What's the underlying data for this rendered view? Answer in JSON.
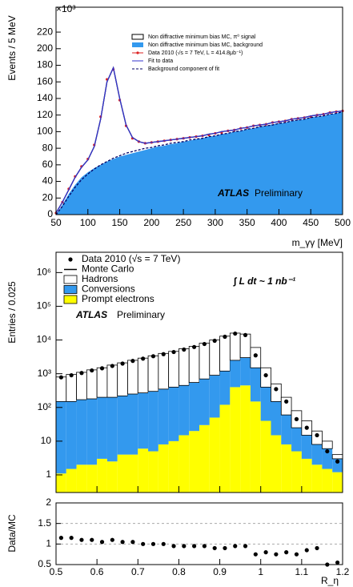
{
  "chart_data": [
    {
      "type": "line",
      "y_label": "Events / 5 MeV",
      "x_label": "m_γγ [MeV]",
      "y_scale_label": "×10³",
      "annotations": [
        "ATLAS",
        "Preliminary"
      ],
      "legend": "upper right",
      "xlim": [
        50,
        500
      ],
      "xticks": [
        50,
        100,
        150,
        200,
        250,
        300,
        350,
        400,
        450,
        500
      ],
      "ylim": [
        0,
        250
      ],
      "yticks": [
        0,
        20,
        40,
        60,
        80,
        100,
        120,
        140,
        160,
        180,
        200,
        220
      ],
      "x": [
        50,
        60,
        70,
        80,
        90,
        100,
        110,
        120,
        130,
        140,
        150,
        160,
        170,
        180,
        190,
        200,
        210,
        220,
        230,
        240,
        250,
        260,
        270,
        280,
        290,
        300,
        310,
        320,
        330,
        340,
        350,
        360,
        370,
        380,
        390,
        400,
        410,
        420,
        430,
        440,
        450,
        460,
        470,
        480,
        490,
        500
      ],
      "series": [
        {
          "name": "Non diffractive minimum bias MC, π⁰ signal",
          "color": "#000000",
          "style": "stacked",
          "values": [
            2,
            3,
            5,
            9,
            12,
            15,
            26,
            55,
            96,
            110,
            70,
            36,
            19,
            12,
            8,
            7,
            6,
            6,
            5,
            5,
            4,
            4,
            3,
            3,
            3,
            3,
            3,
            3,
            2,
            3,
            2,
            3,
            2,
            2,
            2,
            2,
            2,
            2,
            2,
            2,
            2,
            2,
            2,
            2,
            2,
            1
          ]
        },
        {
          "name": "Non diffractive minimum bias MC, background",
          "color": "#3399ee",
          "style": "area",
          "values": [
            0,
            12,
            25,
            36,
            45,
            51,
            56,
            60,
            64,
            67,
            70,
            72,
            74,
            76,
            78,
            80,
            82,
            83,
            85,
            86,
            88,
            89,
            91,
            92,
            94,
            95,
            97,
            98,
            100,
            101,
            103,
            104,
            106,
            107,
            109,
            110,
            111,
            113,
            114,
            115,
            117,
            118,
            119,
            121,
            122,
            124
          ]
        },
        {
          "name": "Data 2010 (√s = 7 TeV, L = 414.8μb⁻¹)",
          "color": "#dd2222",
          "style": "points",
          "values": [
            2,
            15,
            31,
            46,
            58,
            67,
            84,
            118,
            163,
            175,
            138,
            107,
            92,
            88,
            86,
            87,
            88,
            89,
            90,
            91,
            92,
            93,
            94,
            95,
            96,
            98,
            99,
            101,
            102,
            104,
            105,
            107,
            108,
            109,
            111,
            112,
            113,
            115,
            116,
            117,
            118,
            120,
            121,
            123,
            124,
            125
          ]
        },
        {
          "name": "Fit to data",
          "color": "#3333cc",
          "style": "line",
          "values": [
            2,
            15,
            30,
            45,
            57,
            66,
            82,
            115,
            160,
            177,
            140,
            108,
            93,
            88,
            86,
            87,
            88,
            89,
            90,
            91,
            92,
            93,
            94,
            95,
            97,
            98,
            100,
            101,
            102,
            104,
            105,
            107,
            108,
            109,
            111,
            112,
            113,
            115,
            116,
            117,
            119,
            120,
            121,
            123,
            124,
            125
          ]
        },
        {
          "name": "Background component of fit",
          "color": "#000066",
          "style": "dashed",
          "values": [
            0,
            10,
            22,
            33,
            42,
            49,
            55,
            60,
            64,
            68,
            71,
            74,
            76,
            78,
            80,
            81,
            83,
            84,
            86,
            87,
            88,
            90,
            91,
            92,
            94,
            95,
            97,
            98,
            100,
            101,
            103,
            104,
            106,
            107,
            108,
            110,
            111,
            113,
            114,
            115,
            117,
            118,
            119,
            121,
            122,
            124
          ]
        }
      ]
    },
    {
      "type": "histogram",
      "y_label": "Entries / 0.025",
      "log_y": true,
      "mc_label": "Monte Carlo",
      "annotations": [
        "∫ L dt ~ 1 nb⁻¹",
        "ATLAS",
        "Preliminary"
      ],
      "legend": "upper left",
      "bins": [
        0.5,
        0.525,
        0.55,
        0.575,
        0.6,
        0.625,
        0.65,
        0.675,
        0.7,
        0.725,
        0.75,
        0.775,
        0.8,
        0.825,
        0.85,
        0.875,
        0.9,
        0.925,
        0.95,
        0.975,
        1.0,
        1.025,
        1.05,
        1.075,
        1.1,
        1.125,
        1.15,
        1.175,
        1.2
      ],
      "xlim": [
        0.5,
        1.2
      ],
      "ylim": [
        0.3,
        4000000
      ],
      "yticks": [
        1,
        10,
        {
          "value": 100,
          "label": "10²"
        },
        {
          "value": 1000,
          "label": "10³"
        },
        {
          "value": 10000,
          "label": "10⁴"
        },
        {
          "value": 100000,
          "label": "10⁵"
        },
        {
          "value": 1000000,
          "label": "10⁶"
        }
      ],
      "series": [
        {
          "name": "Data 2010 (√s = 7 TeV)",
          "color": "#000000",
          "style": "points",
          "values": [
            780,
            900,
            1050,
            1250,
            1450,
            1700,
            2000,
            2400,
            2800,
            3300,
            3800,
            4400,
            5200,
            6200,
            7600,
            9500,
            12500,
            15500,
            14000,
            3500,
            900,
            350,
            150,
            45,
            25,
            15,
            5,
            2.5
          ]
        },
        {
          "name": "Hadrons",
          "color": "#ffffff",
          "style": "stacked",
          "values": [
            650,
            800,
            930,
            1120,
            1300,
            1600,
            1880,
            2250,
            2630,
            3100,
            3650,
            4200,
            5050,
            5950,
            7300,
            9100,
            11800,
            13500,
            12000,
            4500,
            1100,
            350,
            140,
            55,
            25,
            12,
            4,
            1
          ]
        },
        {
          "name": "Conversions",
          "color": "#3399ee",
          "style": "stacked",
          "values": [
            148.9,
            148.5,
            168,
            178,
            197,
            197.5,
            216,
            246,
            264,
            295,
            342,
            390,
            435,
            530,
            670,
            850,
            1080,
            2100,
            2550,
            1350,
            360,
            135,
            52,
            20,
            12,
            6,
            4.5,
            1.8
          ]
        },
        {
          "name": "Prompt electrons",
          "color": "#ffff00",
          "style": "stacked",
          "values": [
            1.1,
            1.5,
            2,
            2,
            3,
            2.5,
            4,
            4,
            6,
            5,
            8,
            10,
            15,
            20,
            30,
            50,
            120,
            400,
            450,
            150,
            40,
            15,
            8,
            5,
            3,
            2,
            1.5,
            1.2
          ]
        }
      ]
    },
    {
      "type": "scatter",
      "y_label": "Data/MC",
      "x_label": "R_η",
      "grid": true,
      "xlim": [
        0.5,
        1.2
      ],
      "xticks": [
        0.5,
        0.6,
        0.7,
        0.8,
        0.9,
        1,
        1.1,
        1.2
      ],
      "ylim": [
        0.5,
        2
      ],
      "yticks": [
        0.5,
        1,
        1.5,
        2
      ],
      "x": [
        0.5125,
        0.5375,
        0.5625,
        0.5875,
        0.6125,
        0.6375,
        0.6625,
        0.6875,
        0.7125,
        0.7375,
        0.7625,
        0.7875,
        0.8125,
        0.8375,
        0.8625,
        0.8875,
        0.9125,
        0.9375,
        0.9625,
        0.9875,
        1.0125,
        1.0375,
        1.0625,
        1.0875,
        1.1125,
        1.1375,
        1.1625,
        1.1875
      ],
      "series": [
        {
          "name": "Data/MC",
          "color": "#000000",
          "values": [
            1.15,
            1.15,
            1.1,
            1.1,
            1.05,
            1.1,
            1.05,
            1.05,
            1.0,
            1.0,
            1.0,
            0.95,
            0.95,
            0.95,
            0.95,
            0.9,
            0.9,
            0.95,
            0.95,
            0.75,
            0.8,
            0.75,
            0.8,
            0.75,
            0.85,
            0.9,
            0.5,
            0.55
          ]
        }
      ]
    }
  ]
}
